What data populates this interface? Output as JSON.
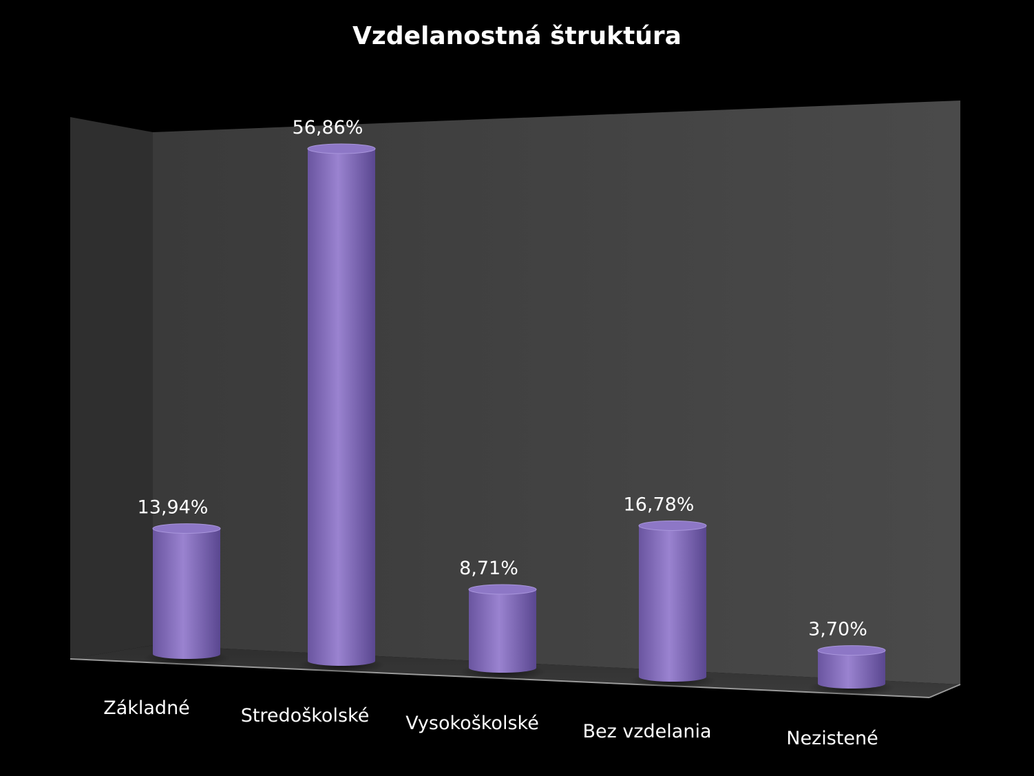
{
  "chart_data": {
    "type": "bar",
    "style": "3d-cylinder",
    "title": "Vzdelanostná štruktúra",
    "categories": [
      "Základné",
      "Stredoškolské",
      "Vysokoškolské",
      "Bez vzdelania",
      "Nezistené"
    ],
    "values": [
      13.94,
      56.86,
      8.71,
      16.78,
      3.7
    ],
    "value_labels": [
      "13,94%",
      "56,86%",
      "8,71%",
      "16,78%",
      "3,70%"
    ],
    "unit": "%",
    "ylim": [
      0,
      60
    ],
    "grid": false,
    "legend": "none",
    "bar_color": "#8a72c2",
    "background_color": "#000000",
    "wall_color": "#454545"
  }
}
